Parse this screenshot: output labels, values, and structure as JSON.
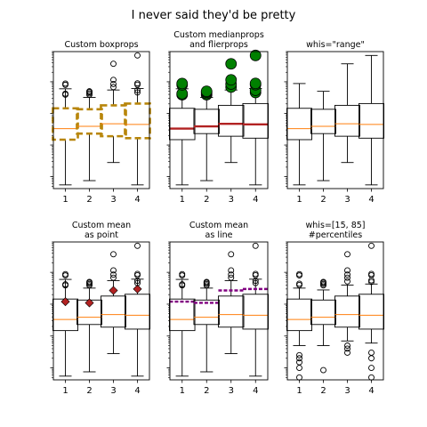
{
  "figure": {
    "suptitle": "I never said they'd be pretty"
  },
  "chart_data": [
    {
      "type": "box",
      "title_lines": [
        "Custom boxprops"
      ],
      "categories": [
        "1",
        "2",
        "3",
        "4"
      ],
      "yscale": "log",
      "y_ticks_visible": false,
      "style": {
        "box": "dashed",
        "box_color": "#b8860b",
        "median_color": "#ff7f0e",
        "flier": "open-circle"
      },
      "boxes": [
        {
          "label": "1",
          "whislo": 0.0055,
          "q1": 0.148,
          "med": 0.33,
          "q3": 1.45,
          "whishi": 6.0,
          "fliers": [
            3.9,
            4.2,
            8.0,
            8.8
          ]
        },
        {
          "label": "2",
          "whislo": 0.0075,
          "q1": 0.23,
          "med": 0.39,
          "q3": 1.35,
          "whishi": 3.2,
          "fliers": [
            3.9,
            4.3,
            4.7,
            5.0
          ]
        },
        {
          "label": "3",
          "whislo": 0.028,
          "q1": 0.19,
          "med": 0.47,
          "q3": 1.8,
          "whishi": 5.5,
          "fliers": [
            6.8,
            8.5,
            11.5,
            37
          ]
        },
        {
          "label": "4",
          "whislo": 0.0055,
          "q1": 0.165,
          "med": 0.45,
          "q3": 2.05,
          "whishi": 6.1,
          "fliers": [
            4.6,
            5.4,
            8.1,
            8.9,
            68
          ]
        }
      ]
    },
    {
      "type": "box",
      "title_lines": [
        "Custom medianprops",
        "and flierprops"
      ],
      "categories": [
        "1",
        "2",
        "3",
        "4"
      ],
      "yscale": "log",
      "y_ticks_visible": false,
      "style": {
        "box": "solid",
        "box_color": "#000000",
        "median_color": "#b22222",
        "flier": "green-circle"
      },
      "boxes": [
        {
          "label": "1",
          "whislo": 0.0055,
          "q1": 0.148,
          "med": 0.33,
          "q3": 1.45,
          "whishi": 6.0,
          "fliers": [
            3.9,
            4.2,
            8.0,
            8.8
          ]
        },
        {
          "label": "2",
          "whislo": 0.0075,
          "q1": 0.23,
          "med": 0.39,
          "q3": 1.35,
          "whishi": 3.2,
          "fliers": [
            3.9,
            4.3,
            4.7,
            5.0
          ]
        },
        {
          "label": "3",
          "whislo": 0.028,
          "q1": 0.19,
          "med": 0.47,
          "q3": 1.8,
          "whishi": 5.5,
          "fliers": [
            6.8,
            8.5,
            11.5,
            37
          ]
        },
        {
          "label": "4",
          "whislo": 0.0055,
          "q1": 0.165,
          "med": 0.45,
          "q3": 2.05,
          "whishi": 6.1,
          "fliers": [
            4.6,
            5.4,
            8.1,
            8.9,
            68
          ]
        }
      ]
    },
    {
      "type": "box",
      "title_lines": [
        "whis=\"range\""
      ],
      "categories": [
        "1",
        "2",
        "3",
        "4"
      ],
      "yscale": "log",
      "y_ticks_visible": false,
      "style": {
        "box": "solid",
        "box_color": "#000000",
        "median_color": "#ff7f0e",
        "flier": "none"
      },
      "boxes": [
        {
          "label": "1",
          "whislo": 0.0055,
          "q1": 0.148,
          "med": 0.33,
          "q3": 1.45,
          "whishi": 8.8,
          "fliers": []
        },
        {
          "label": "2",
          "whislo": 0.0075,
          "q1": 0.23,
          "med": 0.39,
          "q3": 1.35,
          "whishi": 5.0,
          "fliers": []
        },
        {
          "label": "3",
          "whislo": 0.028,
          "q1": 0.19,
          "med": 0.47,
          "q3": 1.8,
          "whishi": 37,
          "fliers": []
        },
        {
          "label": "4",
          "whislo": 0.0055,
          "q1": 0.165,
          "med": 0.45,
          "q3": 2.05,
          "whishi": 68,
          "fliers": []
        }
      ]
    },
    {
      "type": "box",
      "title_lines": [
        "Custom mean",
        "as point"
      ],
      "categories": [
        "1",
        "2",
        "3",
        "4"
      ],
      "yscale": "log",
      "y_ticks_visible": false,
      "style": {
        "box": "solid",
        "box_color": "#000000",
        "median_color": "#ff7f0e",
        "flier": "open-circle",
        "mean": "point",
        "mean_color": "#b22222"
      },
      "boxes": [
        {
          "label": "1",
          "whislo": 0.0055,
          "q1": 0.148,
          "med": 0.33,
          "q3": 1.45,
          "whishi": 6.0,
          "mean": 1.2,
          "fliers": [
            3.9,
            4.2,
            8.0,
            8.8
          ]
        },
        {
          "label": "2",
          "whislo": 0.0075,
          "q1": 0.23,
          "med": 0.39,
          "q3": 1.35,
          "whishi": 3.2,
          "mean": 1.1,
          "fliers": [
            3.9,
            4.3,
            4.7,
            5.0
          ]
        },
        {
          "label": "3",
          "whislo": 0.028,
          "q1": 0.19,
          "med": 0.47,
          "q3": 1.8,
          "whishi": 5.5,
          "mean": 2.7,
          "fliers": [
            6.8,
            8.5,
            11.5,
            37
          ]
        },
        {
          "label": "4",
          "whislo": 0.0055,
          "q1": 0.165,
          "med": 0.45,
          "q3": 2.05,
          "whishi": 6.1,
          "mean": 3.0,
          "fliers": [
            4.6,
            5.4,
            8.1,
            8.9,
            68
          ]
        }
      ]
    },
    {
      "type": "box",
      "title_lines": [
        "Custom mean",
        "as line"
      ],
      "categories": [
        "1",
        "2",
        "3",
        "4"
      ],
      "yscale": "log",
      "y_ticks_visible": false,
      "style": {
        "box": "solid",
        "box_color": "#000000",
        "median_color": "#ff7f0e",
        "flier": "open-circle",
        "mean": "line",
        "mean_color": "#800080"
      },
      "boxes": [
        {
          "label": "1",
          "whislo": 0.0055,
          "q1": 0.148,
          "med": 0.33,
          "q3": 1.45,
          "whishi": 6.0,
          "mean": 1.2,
          "fliers": [
            3.9,
            4.2,
            8.0,
            8.8
          ]
        },
        {
          "label": "2",
          "whislo": 0.0075,
          "q1": 0.23,
          "med": 0.39,
          "q3": 1.35,
          "whishi": 3.2,
          "mean": 1.1,
          "fliers": [
            3.9,
            4.3,
            4.7,
            5.0
          ]
        },
        {
          "label": "3",
          "whislo": 0.028,
          "q1": 0.19,
          "med": 0.47,
          "q3": 1.8,
          "whishi": 5.5,
          "mean": 2.7,
          "fliers": [
            6.8,
            8.5,
            11.5,
            37
          ]
        },
        {
          "label": "4",
          "whislo": 0.0055,
          "q1": 0.165,
          "med": 0.45,
          "q3": 2.05,
          "whishi": 6.1,
          "mean": 3.0,
          "fliers": [
            4.6,
            5.4,
            8.1,
            8.9,
            68
          ]
        }
      ]
    },
    {
      "type": "box",
      "title_lines": [
        "whis=[15, 85]",
        "#percentiles"
      ],
      "categories": [
        "1",
        "2",
        "3",
        "4"
      ],
      "yscale": "log",
      "y_ticks_visible": false,
      "style": {
        "box": "solid",
        "box_color": "#000000",
        "median_color": "#ff7f0e",
        "flier": "open-circle"
      },
      "boxes": [
        {
          "label": "1",
          "whislo": 0.05,
          "q1": 0.148,
          "med": 0.33,
          "q3": 1.45,
          "whishi": 3.2,
          "fliers": [
            0.005,
            0.01,
            0.015,
            0.02,
            0.025,
            4.0,
            4.4,
            8.0,
            8.8
          ]
        },
        {
          "label": "2",
          "whislo": 0.05,
          "q1": 0.23,
          "med": 0.39,
          "q3": 1.35,
          "whishi": 2.8,
          "fliers": [
            0.0085,
            3.9,
            4.3,
            4.7,
            5.0
          ]
        },
        {
          "label": "3",
          "whislo": 0.07,
          "q1": 0.19,
          "med": 0.47,
          "q3": 1.8,
          "whishi": 4.0,
          "fliers": [
            0.03,
            0.04,
            0.05,
            5.2,
            6.8,
            8.5,
            11.5,
            37
          ]
        },
        {
          "label": "4",
          "whislo": 0.06,
          "q1": 0.165,
          "med": 0.45,
          "q3": 2.05,
          "whishi": 4.3,
          "fliers": [
            0.005,
            0.01,
            0.02,
            0.03,
            5.0,
            5.6,
            8.1,
            8.9,
            68
          ]
        }
      ]
    }
  ]
}
